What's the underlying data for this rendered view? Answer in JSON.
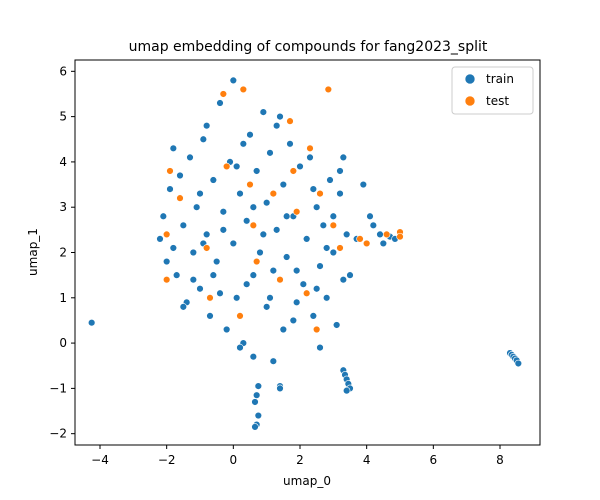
{
  "chart_data": {
    "type": "scatter",
    "title": "umap embedding of compounds for fang2023_split",
    "xlabel": "umap_0",
    "ylabel": "umap_1",
    "xlim": [
      -4.75,
      9.2
    ],
    "ylim": [
      -2.25,
      6.25
    ],
    "xticks": [
      -4,
      -2,
      0,
      2,
      4,
      6,
      8
    ],
    "yticks": [
      -2,
      -1,
      0,
      1,
      2,
      3,
      4,
      5,
      6
    ],
    "grid": false,
    "legend": {
      "title": "",
      "position": "top-right"
    },
    "series": [
      {
        "name": "train",
        "color": "#1f77b4",
        "points": [
          [
            -4.25,
            0.45
          ],
          [
            -2.2,
            2.3
          ],
          [
            -2.1,
            2.8
          ],
          [
            -2.0,
            1.8
          ],
          [
            -1.9,
            3.4
          ],
          [
            -1.8,
            2.1
          ],
          [
            -1.7,
            1.5
          ],
          [
            -1.6,
            3.7
          ],
          [
            -1.5,
            2.6
          ],
          [
            -1.4,
            0.9
          ],
          [
            -1.3,
            4.1
          ],
          [
            -1.2,
            2.0
          ],
          [
            -1.1,
            3.0
          ],
          [
            -1.0,
            1.2
          ],
          [
            -0.9,
            4.5
          ],
          [
            -0.8,
            2.4
          ],
          [
            -0.7,
            0.6
          ],
          [
            -0.6,
            3.6
          ],
          [
            -0.5,
            1.8
          ],
          [
            -0.4,
            5.3
          ],
          [
            -0.3,
            2.9
          ],
          [
            -0.2,
            0.3
          ],
          [
            -0.1,
            4.0
          ],
          [
            0.0,
            2.2
          ],
          [
            0.0,
            5.8
          ],
          [
            0.1,
            1.0
          ],
          [
            0.2,
            3.3
          ],
          [
            0.3,
            5.6
          ],
          [
            0.3,
            0.0
          ],
          [
            0.4,
            2.7
          ],
          [
            0.5,
            4.6
          ],
          [
            0.6,
            1.5
          ],
          [
            0.6,
            -0.3
          ],
          [
            0.7,
            3.8
          ],
          [
            0.8,
            2.0
          ],
          [
            0.9,
            5.1
          ],
          [
            1.0,
            0.8
          ],
          [
            1.0,
            3.1
          ],
          [
            1.1,
            4.2
          ],
          [
            1.2,
            1.6
          ],
          [
            1.3,
            2.5
          ],
          [
            1.4,
            5.0
          ],
          [
            1.5,
            0.3
          ],
          [
            1.5,
            3.5
          ],
          [
            1.6,
            1.9
          ],
          [
            1.7,
            4.4
          ],
          [
            1.8,
            2.8
          ],
          [
            1.9,
            0.9
          ],
          [
            2.0,
            3.9
          ],
          [
            2.1,
            1.3
          ],
          [
            2.2,
            2.3
          ],
          [
            2.3,
            4.1
          ],
          [
            2.4,
            0.6
          ],
          [
            2.5,
            3.0
          ],
          [
            2.6,
            1.7
          ],
          [
            2.7,
            2.6
          ],
          [
            2.8,
            1.0
          ],
          [
            2.9,
            3.6
          ],
          [
            3.0,
            2.0
          ],
          [
            3.1,
            0.4
          ],
          [
            3.2,
            3.3
          ],
          [
            3.3,
            1.4
          ],
          [
            3.4,
            2.4
          ],
          [
            3.5,
            1.5
          ],
          [
            -1.5,
            0.8
          ],
          [
            -0.8,
            4.8
          ],
          [
            0.2,
            -0.1
          ],
          [
            1.2,
            -0.4
          ],
          [
            2.6,
            -0.1
          ],
          [
            -1.8,
            4.3
          ],
          [
            3.3,
            4.1
          ],
          [
            3.2,
            3.8
          ],
          [
            3.9,
            3.5
          ],
          [
            4.1,
            2.8
          ],
          [
            4.2,
            2.6
          ],
          [
            4.4,
            2.4
          ],
          [
            4.5,
            2.2
          ],
          [
            4.7,
            2.35
          ],
          [
            4.85,
            2.3
          ],
          [
            3.7,
            2.3
          ],
          [
            0.75,
            -0.95
          ],
          [
            0.7,
            -1.15
          ],
          [
            0.65,
            -1.3
          ],
          [
            0.75,
            -1.6
          ],
          [
            0.7,
            -1.8
          ],
          [
            0.65,
            -1.85
          ],
          [
            1.4,
            -0.95
          ],
          [
            1.4,
            -1.0
          ],
          [
            3.3,
            -0.6
          ],
          [
            3.35,
            -0.7
          ],
          [
            3.4,
            -0.8
          ],
          [
            3.45,
            -0.9
          ],
          [
            3.5,
            -1.0
          ],
          [
            3.4,
            -1.05
          ],
          [
            8.3,
            -0.22
          ],
          [
            8.35,
            -0.26
          ],
          [
            8.4,
            -0.3
          ],
          [
            8.45,
            -0.34
          ],
          [
            8.5,
            -0.38
          ],
          [
            8.55,
            -0.45
          ],
          [
            -1.2,
            1.4
          ],
          [
            -0.9,
            2.2
          ],
          [
            -0.4,
            1.1
          ],
          [
            0.4,
            1.3
          ],
          [
            0.9,
            2.4
          ],
          [
            1.6,
            2.8
          ],
          [
            1.9,
            1.6
          ],
          [
            2.4,
            3.4
          ],
          [
            2.8,
            2.1
          ],
          [
            0.1,
            3.9
          ],
          [
            -1.0,
            3.3
          ],
          [
            -0.3,
            2.5
          ],
          [
            0.6,
            3.0
          ],
          [
            1.1,
            1.0
          ],
          [
            1.8,
            0.5
          ],
          [
            2.5,
            1.2
          ],
          [
            3.0,
            2.8
          ],
          [
            -0.6,
            1.5
          ],
          [
            0.3,
            4.4
          ],
          [
            1.3,
            4.8
          ]
        ]
      },
      {
        "name": "test",
        "color": "#ff7f0e",
        "points": [
          [
            0.3,
            5.6
          ],
          [
            -0.3,
            5.5
          ],
          [
            2.85,
            5.6
          ],
          [
            1.7,
            4.9
          ],
          [
            -1.9,
            3.8
          ],
          [
            -1.6,
            3.2
          ],
          [
            -2.0,
            2.4
          ],
          [
            -2.0,
            1.4
          ],
          [
            -0.8,
            2.1
          ],
          [
            0.5,
            3.5
          ],
          [
            1.2,
            3.3
          ],
          [
            1.9,
            2.9
          ],
          [
            2.6,
            3.3
          ],
          [
            3.0,
            2.6
          ],
          [
            0.7,
            1.8
          ],
          [
            2.2,
            1.1
          ],
          [
            2.5,
            0.3
          ],
          [
            0.2,
            0.6
          ],
          [
            -0.7,
            1.0
          ],
          [
            1.4,
            1.4
          ],
          [
            3.2,
            2.1
          ],
          [
            3.8,
            2.3
          ],
          [
            4.0,
            2.2
          ],
          [
            4.6,
            2.4
          ],
          [
            5.0,
            2.45
          ],
          [
            5.0,
            2.35
          ],
          [
            0.6,
            2.6
          ],
          [
            1.8,
            3.8
          ],
          [
            2.3,
            4.3
          ],
          [
            -0.2,
            3.9
          ]
        ]
      }
    ]
  }
}
